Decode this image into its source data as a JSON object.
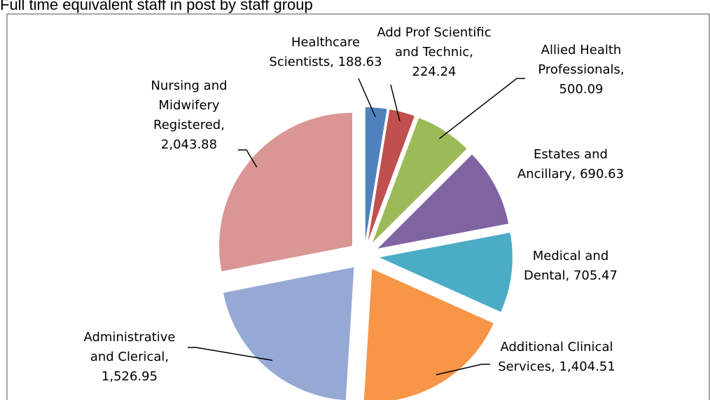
{
  "chart_data": {
    "type": "pie",
    "title": "Full time equivalent staff in post by staff group",
    "categories": [
      "Healthcare Scientists",
      "Add Prof Scientific and Technic",
      "Allied Health Professionals",
      "Estates and Ancillary",
      "Medical and Dental",
      "Additional Clinical Services",
      "Administrative and Clerical",
      "Nursing and Midwifery Registered"
    ],
    "values": [
      188.63,
      224.24,
      500.09,
      690.63,
      705.47,
      1404.51,
      1526.95,
      2043.88
    ],
    "value_labels": [
      "188.63",
      "224.24",
      "500.09",
      "690.63",
      "705.47",
      "1,404.51",
      "1,526.95",
      "2,043.88"
    ],
    "label_separator": ",",
    "colors": [
      "#4f81bd",
      "#c0504d",
      "#9bbb59",
      "#8064a2",
      "#4bacc6",
      "#f79646",
      "#95a9d4",
      "#d99694"
    ]
  }
}
